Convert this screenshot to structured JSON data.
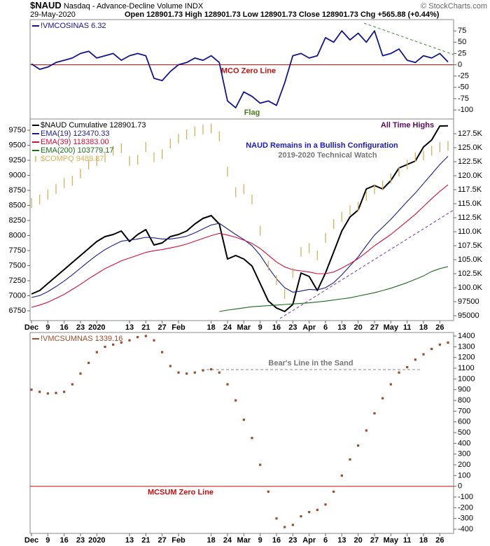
{
  "header": {
    "symbol": "$NAUD",
    "description": "Nasdaq - Advance-Decline Volume INDX",
    "date": "29-May-2020",
    "quote": "Open 128901.73 High 128901.73 Low 128901.73 Close 128901.73 Chg +565.88 (+0.44%)",
    "copyright": "© StockCharts.com"
  },
  "chart_data": [
    {
      "type": "line",
      "zero_line_label": "MCO Zero Line",
      "annotation": "Flag",
      "ylim": [
        -120,
        100
      ],
      "yticks": [
        75,
        50,
        25,
        0,
        -25,
        -50,
        -75,
        -100
      ],
      "series": [
        {
          "name": "!VMCOSINAS",
          "color": "#14148c",
          "values": [
            2,
            -10,
            -5,
            5,
            10,
            15,
            25,
            30,
            15,
            20,
            25,
            10,
            20,
            25,
            20,
            -30,
            -35,
            -15,
            0,
            5,
            15,
            10,
            20,
            5,
            -80,
            -95,
            -60,
            -70,
            -85,
            -80,
            -90,
            -40,
            20,
            25,
            15,
            20,
            60,
            50,
            75,
            55,
            70,
            50,
            75,
            20,
            25,
            35,
            10,
            5,
            20,
            15,
            25,
            6.32
          ]
        }
      ]
    },
    {
      "type": "line",
      "title": "NAUD Remains in a Bullish Configuration",
      "subtitle": "2019-2020 Technical Watch",
      "annotation": "All Time Highs",
      "categories": [
        "Dec",
        null,
        "9",
        null,
        "16",
        null,
        "23",
        null,
        "2020",
        null,
        null,
        null,
        "13",
        null,
        "21",
        null,
        "27",
        null,
        "Feb",
        null,
        null,
        null,
        "18",
        null,
        "24",
        null,
        "Mar",
        null,
        "9",
        null,
        "16",
        null,
        "23",
        null,
        "Apr",
        null,
        "6",
        null,
        "13",
        null,
        "20",
        null,
        "27",
        null,
        "May",
        null,
        "11",
        null,
        "18",
        null,
        "26",
        null
      ],
      "ylim": [
        94125,
        130125
      ],
      "yticks": [
        95000,
        97500,
        {
          "value": 100000,
          "label": "100.0K"
        },
        {
          "value": 102500,
          "label": "102.5K"
        },
        {
          "value": 105000,
          "label": "105.0K"
        },
        {
          "value": 107500,
          "label": "107.5K"
        },
        {
          "value": 110000,
          "label": "110.0K"
        },
        {
          "value": 112500,
          "label": "112.5K"
        },
        {
          "value": 115000,
          "label": "115.0K"
        },
        {
          "value": 117500,
          "label": "117.5K"
        },
        {
          "value": 120000,
          "label": "120.0K"
        },
        {
          "value": 122500,
          "label": "122.5K"
        },
        {
          "value": 125000,
          "label": "125.0K"
        },
        {
          "value": 127500,
          "label": "127.5K"
        }
      ],
      "y2lim": [
        6587,
        9936
      ],
      "y2ticks": [
        6750,
        7000,
        7250,
        7500,
        7750,
        8000,
        8250,
        8500,
        8750,
        9000,
        9250,
        9500,
        9750
      ],
      "legend_values": [
        "128901.73",
        "123470.33",
        "118383.00",
        "103779.17",
        "9489.87"
      ],
      "series": [
        {
          "name": "$NAUD Cumulative",
          "color": "#000000",
          "values": [
            98875,
            99500,
            100750,
            102000,
            103250,
            104500,
            105750,
            107000,
            108250,
            109125,
            109500,
            110125,
            108250,
            109500,
            110375,
            107625,
            108000,
            109125,
            109500,
            110125,
            111375,
            112375,
            112875,
            111375,
            105125,
            105750,
            105125,
            103875,
            100750,
            97625,
            96375,
            95750,
            97000,
            102625,
            102000,
            99500,
            102625,
            106375,
            110125,
            112625,
            113875,
            117625,
            118250,
            117625,
            119125,
            121375,
            122000,
            122625,
            125125,
            126375,
            128875,
            128901.73
          ]
        },
        {
          "name": "EMA(19)",
          "color": "#1c1c8c",
          "values": [
            98250,
            98600,
            99300,
            100200,
            101200,
            102300,
            103500,
            104700,
            105800,
            106800,
            107600,
            108300,
            108500,
            108700,
            109000,
            108900,
            108700,
            108700,
            108900,
            109200,
            109800,
            110500,
            111200,
            111500,
            110500,
            109500,
            108600,
            107500,
            105800,
            103600,
            101600,
            100000,
            99200,
            99400,
            99700,
            99600,
            100000,
            100900,
            102300,
            103900,
            105500,
            107500,
            109400,
            110800,
            112200,
            113800,
            115400,
            116900,
            118600,
            120300,
            122000,
            123470.33
          ]
        },
        {
          "name": "EMA(39)",
          "color": "#d0103a",
          "values": [
            96500,
            96900,
            97400,
            98100,
            98800,
            99700,
            100600,
            101600,
            102500,
            103400,
            104100,
            104800,
            105300,
            105800,
            106300,
            106600,
            106800,
            107100,
            107400,
            107800,
            108300,
            108800,
            109300,
            109700,
            109400,
            109000,
            108500,
            107900,
            107000,
            105800,
            104600,
            103700,
            103200,
            103000,
            102800,
            102500,
            102500,
            102800,
            103500,
            104300,
            105200,
            106300,
            107500,
            108500,
            109500,
            110700,
            111900,
            113100,
            114500,
            115900,
            117200,
            118383
          ]
        },
        {
          "name": "EMA(200)",
          "color": "#1d6b1d",
          "values": [
            null,
            null,
            null,
            null,
            null,
            null,
            null,
            null,
            null,
            null,
            null,
            null,
            null,
            null,
            null,
            null,
            null,
            null,
            null,
            null,
            null,
            null,
            null,
            95750,
            96000,
            96200,
            96400,
            96600,
            96700,
            96800,
            96900,
            97000,
            97100,
            97200,
            97300,
            97450,
            97600,
            97800,
            98000,
            98200,
            98500,
            98800,
            99100,
            99500,
            99900,
            100400,
            100900,
            101500,
            102100,
            102900,
            103400,
            103779.17
          ]
        },
        {
          "name": "$COMPQ",
          "color": "#d6b25a",
          "axis": "y2",
          "style": "bars",
          "values": [
            8540,
            8600,
            8680,
            8770,
            8870,
            8910,
            9030,
            9180,
            9240,
            9300,
            9410,
            9450,
            9240,
            9260,
            9470,
            9300,
            9350,
            9530,
            9610,
            9680,
            9730,
            9760,
            9780,
            9650,
            9060,
            8720,
            8770,
            8600,
            8080,
            7500,
            7260,
            7030,
            7380,
            7730,
            7790,
            7670,
            7960,
            8190,
            8310,
            8420,
            8480,
            8660,
            8770,
            8830,
            8950,
            9060,
            9180,
            9300,
            9330,
            9410,
            9470,
            9489.87
          ]
        }
      ]
    },
    {
      "type": "dot",
      "zero_line_label": "MCSUM Zero Line",
      "annotation": "Bear's Line in the Sand",
      "categories": [
        "Dec",
        null,
        "9",
        null,
        "16",
        null,
        "23",
        null,
        "2020",
        null,
        null,
        null,
        "13",
        null,
        "21",
        null,
        "27",
        null,
        "Feb",
        null,
        null,
        null,
        "18",
        null,
        "24",
        null,
        "Mar",
        null,
        "9",
        null,
        "16",
        null,
        "23",
        null,
        "Apr",
        null,
        "6",
        null,
        "13",
        null,
        "20",
        null,
        "27",
        null,
        "May",
        null,
        "11",
        null,
        "18",
        null,
        "26",
        null
      ],
      "ylim": [
        -439,
        1433
      ],
      "yticks": [
        1400,
        1300,
        1200,
        1100,
        1000,
        900,
        800,
        700,
        600,
        500,
        400,
        300,
        200,
        100,
        0,
        -100,
        -200,
        -300,
        -400
      ],
      "series": [
        {
          "name": "!VMCSUMNAS",
          "color": "#9a4e2c",
          "values": [
            900,
            880,
            865,
            870,
            880,
            950,
            1050,
            1150,
            1250,
            1300,
            1320,
            1340,
            1360,
            1390,
            1400,
            1360,
            1250,
            1120,
            1060,
            1050,
            1060,
            1080,
            1090,
            1060,
            950,
            800,
            620,
            450,
            200,
            -50,
            -300,
            -380,
            -360,
            -280,
            -240,
            -220,
            -170,
            -50,
            100,
            250,
            380,
            520,
            680,
            820,
            950,
            1060,
            1110,
            1180,
            1230,
            1280,
            1320,
            1339.16
          ]
        }
      ]
    }
  ]
}
